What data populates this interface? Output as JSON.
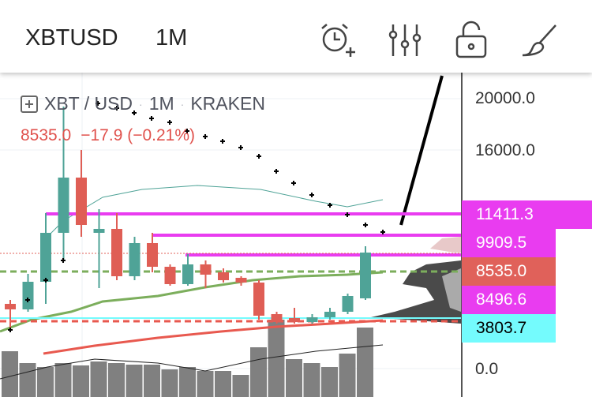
{
  "header": {
    "symbol": "XBTUSD",
    "timeframe": "1M",
    "icons": [
      "alarm-add-icon",
      "indicators-icon",
      "unlock-icon",
      "drawing-brush-icon"
    ]
  },
  "legend": {
    "symbol": "XBT / USD",
    "interval": "1M",
    "exchange": "KRAKEN",
    "sep": "·",
    "last": "8535.0",
    "change": "−17.9 (−0.21%)"
  },
  "price_axis": {
    "ticks": [
      "20000.0",
      "16000.0",
      "0.0"
    ]
  },
  "price_tags": [
    {
      "label": "11411.3",
      "color": "#e93cf0"
    },
    {
      "label": "9909.5",
      "color": "#e93cf0"
    },
    {
      "label": "8535.0",
      "color": "#e0615a"
    },
    {
      "label": "8496.6",
      "color": "#e93cf0"
    },
    {
      "label": "3803.7",
      "color": "#74fbfd"
    }
  ],
  "chart_data": {
    "type": "candlestick",
    "candles": [
      [
        4010,
        3580,
        4318,
        2165
      ],
      [
        3580,
        5732,
        6347,
        3395
      ],
      [
        5732,
        9545,
        11082,
        4010
      ],
      [
        9545,
        13850,
        19385,
        7393
      ],
      [
        13850,
        10160,
        16003,
        9238
      ],
      [
        9545,
        9853,
        11390,
        5240
      ],
      [
        9853,
        6163,
        11082,
        5855
      ],
      [
        6163,
        8746,
        9238,
        5855
      ],
      [
        8746,
        6901,
        9545,
        6470
      ],
      [
        6901,
        5548,
        7085,
        5425
      ],
      [
        5548,
        7085,
        7885,
        5425
      ],
      [
        7085,
        6286,
        7393,
        5240
      ],
      [
        6470,
        5855,
        6778,
        5671
      ],
      [
        6040,
        5671,
        6163,
        5425
      ],
      [
        5671,
        3088,
        5855,
        2780
      ],
      [
        3211,
        2596,
        3395,
        2473
      ],
      [
        2903,
        2596,
        3703,
        2473
      ],
      [
        2596,
        2965,
        3211,
        2473
      ],
      [
        2965,
        3395,
        3703,
        2780
      ],
      [
        3395,
        4625,
        4810,
        3211
      ],
      [
        4440,
        8008,
        8500,
        4318
      ]
    ],
    "volume": [
      58,
      43,
      38,
      43,
      40,
      45,
      43,
      41,
      41,
      35,
      38,
      33,
      33,
      28,
      63,
      98,
      48,
      43,
      38,
      55,
      88
    ],
    "colors": {
      "up": "#4fa397",
      "down": "#df5e55",
      "volume": "#808080"
    }
  }
}
